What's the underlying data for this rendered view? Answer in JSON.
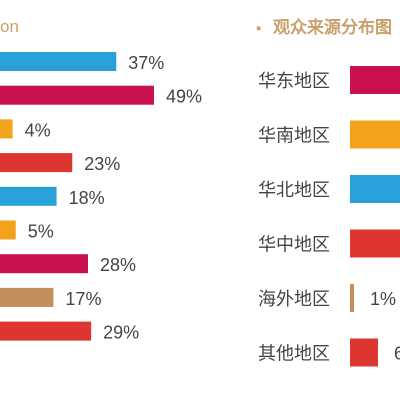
{
  "chart_data": [
    {
      "type": "bar",
      "orientation": "horizontal",
      "title": "on",
      "values": [
        37,
        49,
        4,
        23,
        18,
        5,
        28,
        17,
        29
      ],
      "value_labels": [
        "37%",
        "49%",
        "4%",
        "23%",
        "18%",
        "5%",
        "28%",
        "17%",
        "29%"
      ],
      "colors": [
        "#2aa0d8",
        "#c8114e",
        "#f3a21b",
        "#dd3630",
        "#2aa0d8",
        "#f3a21b",
        "#c8114e",
        "#c28e5a",
        "#dd3630"
      ]
    },
    {
      "type": "bar",
      "orientation": "horizontal",
      "title": "观众来源分布图",
      "categories": [
        "华东地区",
        "华南地区",
        "华北地区",
        "华中地区",
        "海外地区",
        "其他地区"
      ],
      "value_labels": [
        "",
        "",
        "",
        "",
        "1%",
        "6"
      ],
      "colors": [
        "#c8114e",
        "#f3a21b",
        "#2aa0d8",
        "#dd3630",
        "#c28e5a",
        "#dd3630"
      ]
    }
  ]
}
